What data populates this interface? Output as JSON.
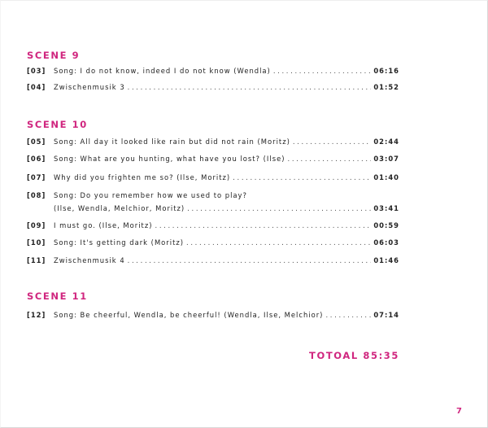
{
  "scenes": [
    {
      "heading": "SCENE 9",
      "tracks": [
        {
          "num": "[03]",
          "title": "Song: I do not know, indeed I do not know (Wendla)",
          "time": "06:16"
        },
        {
          "num": "[04]",
          "title": "Zwischenmusik 3",
          "time": "01:52"
        }
      ]
    },
    {
      "heading": "SCENE 10",
      "tracks": [
        {
          "num": "[05]",
          "title": "Song: All day it looked like rain but did not rain (Moritz)",
          "time": "02:44"
        },
        {
          "num": "[06]",
          "title": "Song: What are you hunting, what have you lost? (Ilse)",
          "time": "03:07"
        },
        {
          "num": "[07]",
          "title": "Why did you frighten me so? (Ilse, Moritz)",
          "time": "01:40"
        },
        {
          "num": "[08]",
          "title_line1": "Song: Do you remember how we used to play?",
          "title": "(Ilse, Wendla, Melchior, Moritz)",
          "time": "03:41"
        },
        {
          "num": "[09]",
          "title": "I must go. (Ilse, Moritz)",
          "time": "00:59"
        },
        {
          "num": "[10]",
          "title": "Song: It's getting dark (Moritz)",
          "time": "06:03"
        },
        {
          "num": "[11]",
          "title": "Zwischenmusik 4",
          "time": "01:46"
        }
      ]
    },
    {
      "heading": "SCENE 11",
      "tracks": [
        {
          "num": "[12]",
          "title": "Song: Be cheerful, Wendla, be cheerful! (Wendla, Ilse, Melchior)",
          "time": "07:14"
        }
      ]
    }
  ],
  "total": "TOTOAL 85:35",
  "page_number": "7",
  "accent_color": "#d0267f"
}
